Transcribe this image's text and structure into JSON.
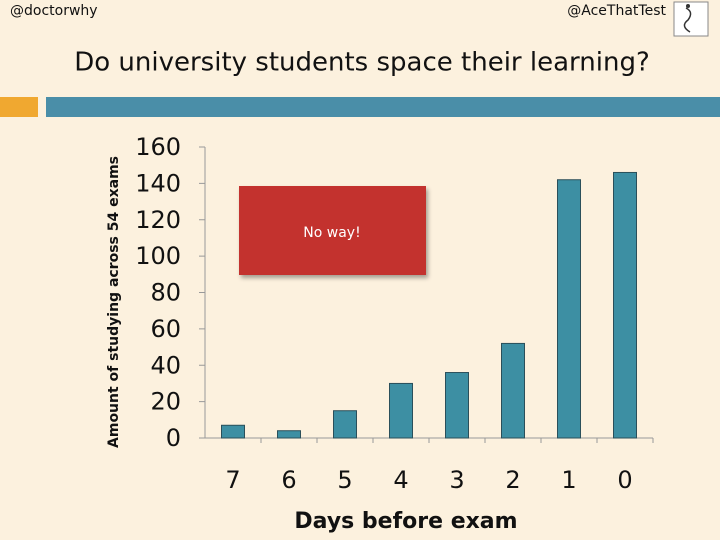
{
  "header": {
    "left": "@doctorwhy",
    "right": "@AceThatTest"
  },
  "chart_data": {
    "type": "bar",
    "title": "Do university students space their learning?",
    "x_label": "Days before exam",
    "y_label": "Amount of studying across 54 exams",
    "annotation": "No way!",
    "categories": [
      "7",
      "6",
      "5",
      "4",
      "3",
      "2",
      "1",
      "0"
    ],
    "values": [
      7,
      4,
      15,
      30,
      36,
      52,
      142,
      146
    ],
    "color": "#3d8fa3",
    "ylim": [
      0,
      160
    ],
    "yticks": [
      0,
      20,
      40,
      60,
      80,
      100,
      120,
      140,
      160
    ]
  }
}
